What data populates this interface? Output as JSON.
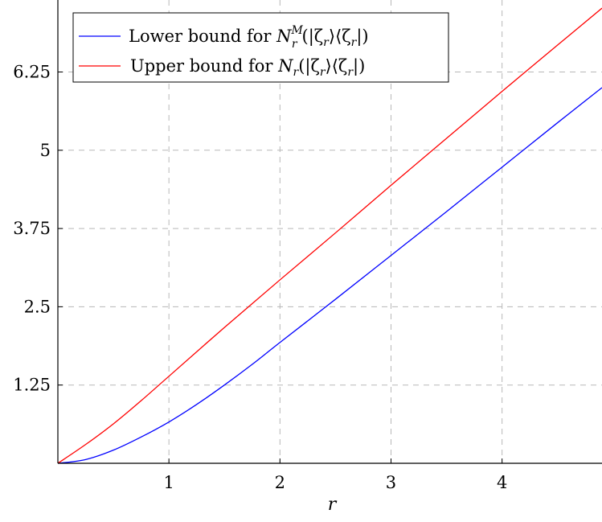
{
  "chart_data": {
    "type": "line",
    "xlabel": "r",
    "ylabel": "",
    "xlim": [
      0,
      4.9
    ],
    "ylim": [
      0,
      7.4
    ],
    "xticks": [
      "1",
      "2",
      "3",
      "4"
    ],
    "yticks": [
      "1.25",
      "2.5",
      "3.75",
      "5",
      "6.25"
    ],
    "grid": true,
    "legend_position": "top-left",
    "series": [
      {
        "name": "Lower bound for N_r^M(|ζ_r⟩⟨ζ_r|)",
        "color": "#0000ff",
        "x": [
          0,
          0.25,
          0.5,
          0.75,
          1,
          1.25,
          1.5,
          1.75,
          2,
          2.5,
          3,
          3.5,
          4,
          4.5,
          4.9
        ],
        "y": [
          0,
          0.06,
          0.21,
          0.42,
          0.66,
          0.94,
          1.25,
          1.58,
          1.93,
          2.62,
          3.32,
          4.02,
          4.73,
          5.44,
          6.0
        ]
      },
      {
        "name": "Upper bound for N_r(|ζ_r⟩⟨ζ_r|)",
        "color": "#ff0000",
        "x": [
          0,
          0.25,
          0.5,
          0.75,
          1,
          1.5,
          2,
          2.5,
          3,
          3.5,
          4,
          4.5,
          4.9
        ],
        "y": [
          0,
          0.3,
          0.63,
          1.0,
          1.39,
          2.17,
          2.93,
          3.68,
          4.44,
          5.19,
          5.94,
          6.68,
          7.27
        ]
      }
    ]
  },
  "legend": {
    "lower": {
      "prefix": "Lower bound for ",
      "sym": "N",
      "sup": "M",
      "sub": "r",
      "arg_open": "(|ζ",
      "arg_sub1": "r",
      "arg_mid": "⟩⟨ζ",
      "arg_sub2": "r",
      "arg_close": "|)"
    },
    "upper": {
      "prefix": "Upper bound for ",
      "sym": "N",
      "sub": "r",
      "arg_open": "(|ζ",
      "arg_sub1": "r",
      "arg_mid": "⟩⟨ζ",
      "arg_sub2": "r",
      "arg_close": "|)"
    }
  }
}
